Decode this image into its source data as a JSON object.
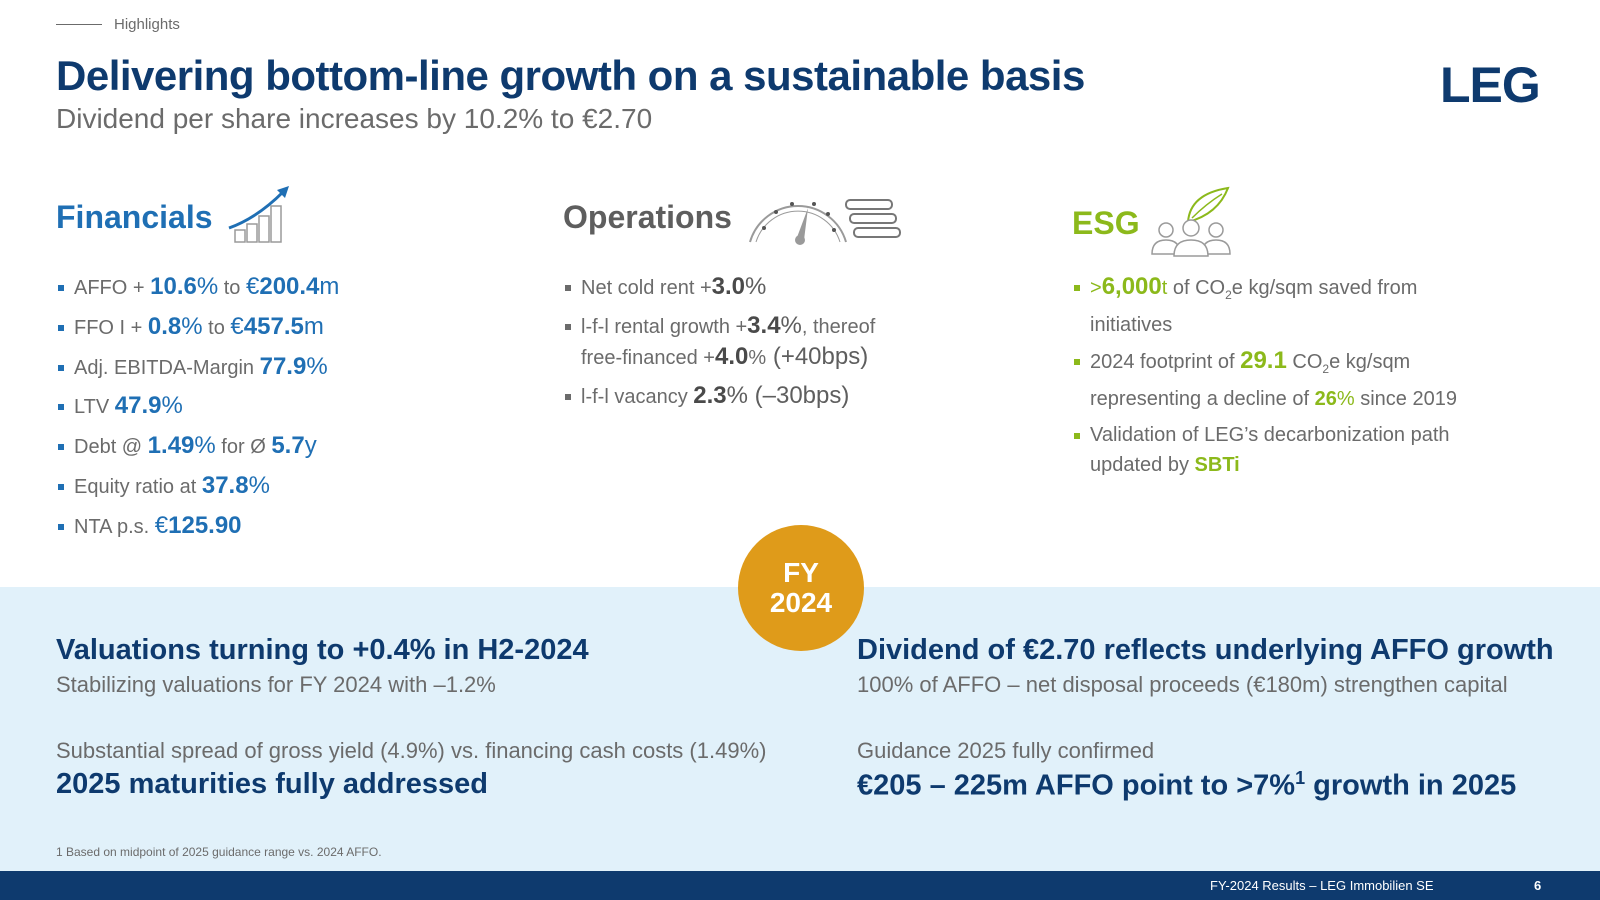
{
  "header": {
    "section": "Highlights",
    "title": "Delivering bottom-line growth on a sustainable basis",
    "subtitle": "Dividend per share increases by 10.2% to €2.70",
    "logo": "LEG"
  },
  "financials": {
    "heading": "Financials",
    "icon": "growth-chart-icon",
    "items": [
      {
        "pre": "AFFO + ",
        "v1": "10.6",
        "u1": "%",
        "mid": " to ",
        "c": "€",
        "v2": "200.4",
        "u2": "m"
      },
      {
        "pre": "FFO I + ",
        "v1": "0.8",
        "u1": "%",
        "mid": " to ",
        "c": "€",
        "v2": "457.5",
        "u2": "m"
      },
      {
        "pre": "Adj. EBITDA-Margin ",
        "v1": "77.9",
        "u1": "%"
      },
      {
        "pre": "LTV ",
        "v1": "47.9",
        "u1": "%"
      },
      {
        "pre": "Debt @ ",
        "v1": "1.49",
        "u1": "%",
        "mid": " for Ø ",
        "v2": "5.7",
        "u2": "y"
      },
      {
        "pre": "Equity ratio at ",
        "v1": "37.8",
        "u1": "%"
      },
      {
        "pre": "NTA p.s. ",
        "c": "€",
        "v1": "125.90"
      }
    ]
  },
  "operations": {
    "heading": "Operations",
    "icon": "speedometer-icon",
    "items": [
      {
        "pre": "Net cold rent +",
        "v1": "3.0",
        "u1": "%"
      },
      {
        "pre": "l-f-l rental growth +",
        "v1": "3.4",
        "u1": "%",
        "mid": ", thereof",
        "l2pre": "free-financed +",
        "l2v": "4.0",
        "l2u": "%",
        "l2post": " (+40bps)"
      },
      {
        "pre": "l-f-l vacancy ",
        "v1": "2.3",
        "u1": "% (–30bps)"
      }
    ]
  },
  "esg": {
    "heading": "ESG",
    "icon": "people-leaf-icon",
    "items": [
      {
        "gt": ">",
        "v1": "6,000",
        "t": "t",
        "post": " of CO",
        "sub": "2",
        "post2": "e kg/sqm saved from",
        "l2": "initiatives"
      },
      {
        "pre": "2024 footprint of ",
        "v1": "29.1",
        "post": " CO",
        "sub": "2",
        "post2": "e kg/sqm",
        "l2pre": "representing a decline of ",
        "l2v": "26",
        "l2u": "%",
        "l2post": " since 2019"
      },
      {
        "pre": "Validation of LEG’s decarbonization path",
        "l2pre": "updated by ",
        "l2v": "SBTi"
      }
    ]
  },
  "badge": {
    "line1": "FY",
    "line2": "2024"
  },
  "bottom": {
    "left": {
      "head1": "Valuations turning to +0.4% in H2-2024",
      "sub1": "Stabilizing valuations for FY 2024 with –1.2%",
      "sub2": "Substantial spread of gross yield (4.9%) vs. financing cash costs (1.49%)",
      "head2": "2025 maturities fully addressed"
    },
    "right": {
      "head1": "Dividend of €2.70 reflects underlying AFFO growth",
      "sub1": "100% of AFFO – net disposal proceeds (€180m) strengthen capital",
      "sub2": "Guidance 2025 fully confirmed",
      "head2": "€205 – 225m AFFO point to >7%",
      "head2_sup": "1",
      "head2_post": " growth in 2025"
    }
  },
  "footnote": "1 Based on midpoint of 2025 guidance range vs. 2024 AFFO.",
  "footer": {
    "text": "FY-2024 Results – LEG Immobilien SE",
    "page": "6"
  },
  "colors": {
    "navy": "#0e3a6e",
    "blue": "#1f6fb4",
    "green": "#8cb91b",
    "orange": "#df9b1a",
    "band": "#e1f1fa"
  }
}
